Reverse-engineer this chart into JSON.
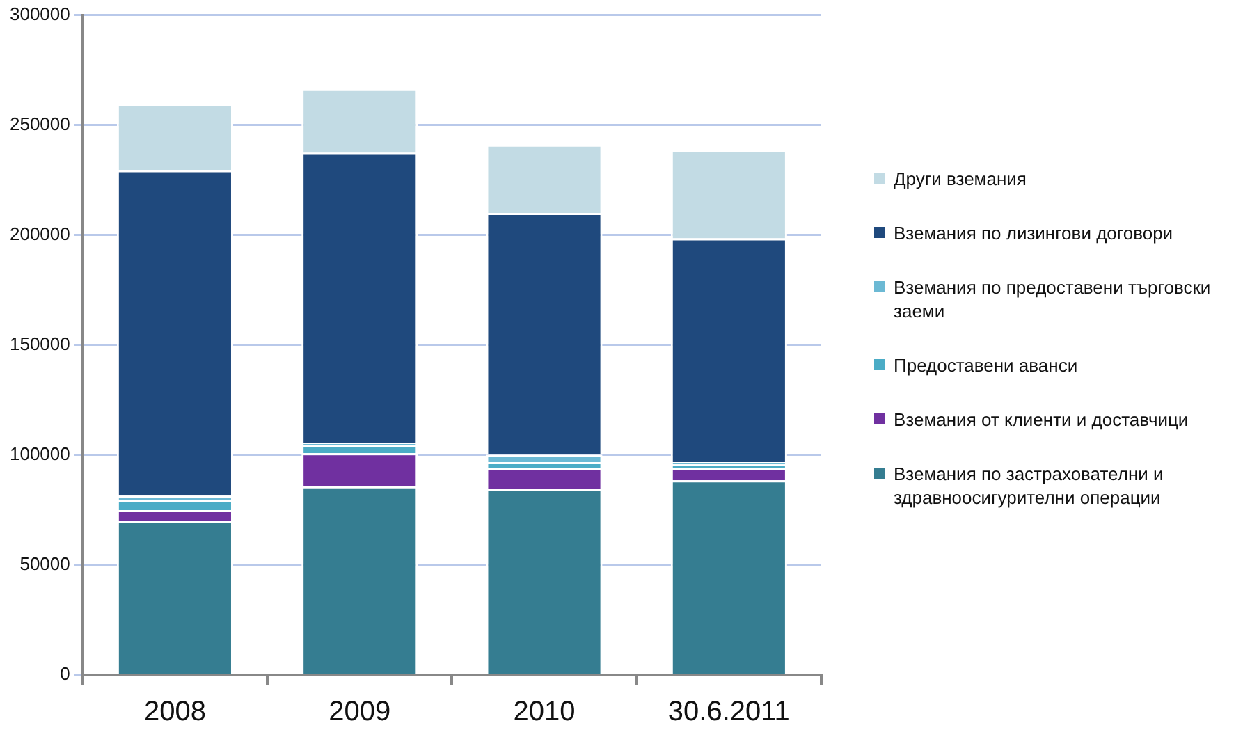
{
  "chart_data": {
    "type": "bar",
    "stacked": true,
    "categories": [
      "2008",
      "2009",
      "2010",
      "30.6.2011"
    ],
    "series": [
      {
        "name": "Вземания по застрахователни и здравноосигурителни операции",
        "color": "#357d91",
        "values": [
          70000,
          85800,
          84500,
          88500
        ]
      },
      {
        "name": "Вземания от клиенти и доставчици",
        "color": "#7030a0",
        "values": [
          5000,
          15000,
          9800,
          5800
        ]
      },
      {
        "name": "Предоставени аванси",
        "color": "#4bacc6",
        "values": [
          4500,
          3600,
          2500,
          1500
        ]
      },
      {
        "name": "Вземания по предоставени търговски заеми",
        "color": "#6cb9d4",
        "values": [
          2000,
          1200,
          3400,
          1000
        ]
      },
      {
        "name": "Вземания по лизингови  договори",
        "color": "#1f497d",
        "values": [
          148000,
          131800,
          109800,
          101700
        ]
      },
      {
        "name": "Други вземания",
        "color": "#c2dbe4",
        "values": [
          30000,
          29000,
          31100,
          40100
        ]
      }
    ],
    "ylim": [
      0,
      300000
    ],
    "yticks": [
      0,
      50000,
      100000,
      150000,
      200000,
      250000,
      300000
    ],
    "grid": "y",
    "legend": "right"
  }
}
